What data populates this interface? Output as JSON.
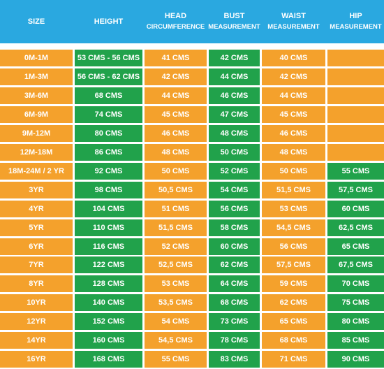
{
  "table": {
    "header": [
      [
        "SIZE"
      ],
      [
        "HEIGHT"
      ],
      [
        "HEAD",
        "CIRCUMFERENCE"
      ],
      [
        "BUST",
        "MEASUREMENT"
      ],
      [
        "WAIST",
        "MEASUREMENT"
      ],
      [
        "HIP",
        "MEASUREMENT"
      ]
    ],
    "rows": [
      [
        "0M-1M",
        "53 CMS - 56 CMS",
        "41 CMS",
        "42 CMS",
        "40 CMS",
        null
      ],
      [
        "1M-3M",
        "56 CMS - 62 CMS",
        "42 CMS",
        "44 CMS",
        "42 CMS",
        null
      ],
      [
        "3M-6M",
        "68 CMS",
        "44 CMS",
        "46 CMS",
        "44 CMS",
        null
      ],
      [
        "6M-9M",
        "74 CMS",
        "45 CMS",
        "47 CMS",
        "45 CMS",
        null
      ],
      [
        "9M-12M",
        "80 CMS",
        "46 CMS",
        "48 CMS",
        "46 CMS",
        null
      ],
      [
        "12M-18M",
        "86 CMS",
        "48 CMS",
        "50 CMS",
        "48 CMS",
        null
      ],
      [
        "18M-24M / 2 YR",
        "92 CMS",
        "50 CMS",
        "52 CMS",
        "50 CMS",
        "55 CMS"
      ],
      [
        "3YR",
        "98 CMS",
        "50,5 CMS",
        "54 CMS",
        "51,5 CMS",
        "57,5 CMS"
      ],
      [
        "4YR",
        "104 CMS",
        "51 CMS",
        "56 CMS",
        "53 CMS",
        "60 CMS"
      ],
      [
        "5YR",
        "110 CMS",
        "51,5 CMS",
        "58 CMS",
        "54,5 CMS",
        "62,5 CMS"
      ],
      [
        "6YR",
        "116 CMS",
        "52 CMS",
        "60 CMS",
        "56 CMS",
        "65 CMS"
      ],
      [
        "7YR",
        "122 CMS",
        "52,5 CMS",
        "62 CMS",
        "57,5 CMS",
        "67,5 CMS"
      ],
      [
        "8YR",
        "128 CMS",
        "53 CMS",
        "64 CMS",
        "59 CMS",
        "70 CMS"
      ],
      [
        "10YR",
        "140 CMS",
        "53,5 CMS",
        "68 CMS",
        "62 CMS",
        "75 CMS"
      ],
      [
        "12YR",
        "152 CMS",
        "54 CMS",
        "73 CMS",
        "65 CMS",
        "80 CMS"
      ],
      [
        "14YR",
        "160 CMS",
        "54,5 CMS",
        "78 CMS",
        "68 CMS",
        "85 CMS"
      ],
      [
        "16YR",
        "168 CMS",
        "55 CMS",
        "83 CMS",
        "71 CMS",
        "90 CMS"
      ]
    ]
  }
}
